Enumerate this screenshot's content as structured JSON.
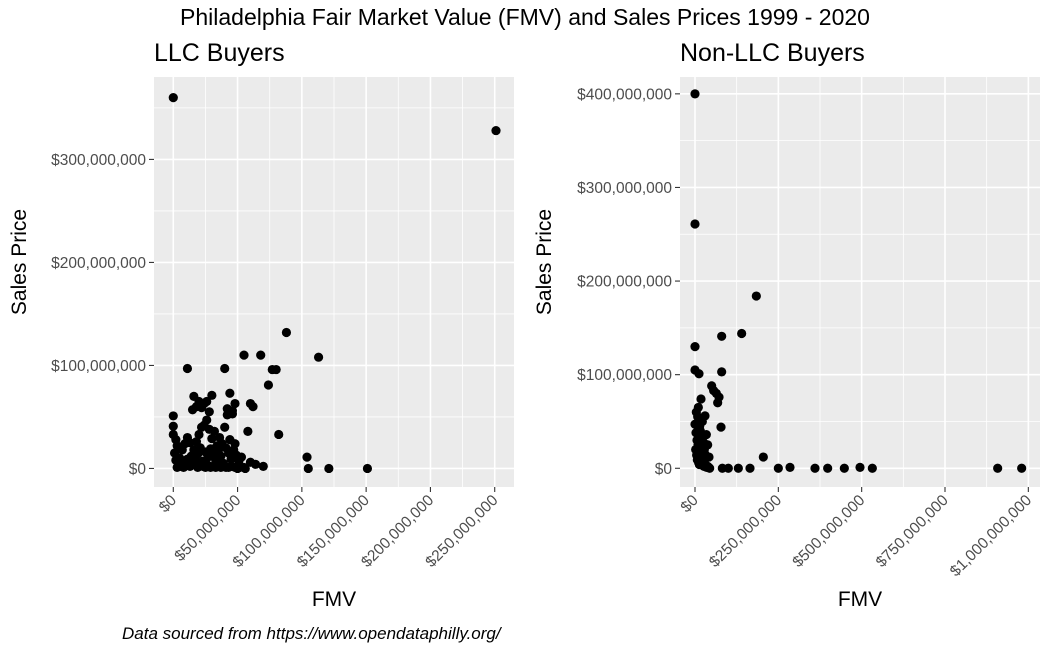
{
  "title": "Philadelphia Fair Market Value (FMV) and Sales Prices 1999 - 2020",
  "caption": "Data sourced from https://www.opendataphilly.org/",
  "chart_data": [
    {
      "type": "scatter",
      "title": "LLC Buyers",
      "xlabel": "FMV",
      "ylabel": "Sales Price",
      "xlim": [
        -15000000,
        265000000
      ],
      "ylim": [
        -18000000,
        380000000
      ],
      "x_ticks": [
        0,
        50000000,
        100000000,
        150000000,
        200000000,
        250000000
      ],
      "x_tick_labels": [
        "$0",
        "$50,000,000",
        "$100,000,000",
        "$150,000,000",
        "$200,000,000",
        "$250,000,000"
      ],
      "y_ticks": [
        0,
        100000000,
        200000000,
        300000000
      ],
      "y_tick_labels": [
        "$0",
        "$100,000,000",
        "$200,000,000",
        "$300,000,000"
      ],
      "grid": true,
      "points": [
        [
          0,
          360000000
        ],
        [
          251000000,
          328000000
        ],
        [
          0,
          51000000
        ],
        [
          0,
          41000000
        ],
        [
          0,
          33000000
        ],
        [
          2000000,
          28000000
        ],
        [
          3000000,
          22000000
        ],
        [
          1000000,
          15000000
        ],
        [
          2000000,
          8000000
        ],
        [
          4000000,
          4000000
        ],
        [
          6000000,
          2000000
        ],
        [
          8000000,
          1000000
        ],
        [
          10000000,
          3000000
        ],
        [
          12000000,
          6000000
        ],
        [
          14000000,
          12000000
        ],
        [
          16000000,
          18000000
        ],
        [
          18000000,
          26000000
        ],
        [
          20000000,
          33000000
        ],
        [
          22000000,
          40000000
        ],
        [
          24000000,
          42000000
        ],
        [
          26000000,
          47000000
        ],
        [
          28000000,
          38000000
        ],
        [
          30000000,
          29000000
        ],
        [
          32000000,
          36000000
        ],
        [
          34000000,
          22000000
        ],
        [
          36000000,
          30000000
        ],
        [
          38000000,
          24000000
        ],
        [
          40000000,
          40000000
        ],
        [
          42000000,
          52000000
        ],
        [
          44000000,
          28000000
        ],
        [
          46000000,
          56000000
        ],
        [
          48000000,
          24000000
        ],
        [
          5000000,
          10000000
        ],
        [
          7000000,
          18000000
        ],
        [
          9000000,
          24000000
        ],
        [
          11000000,
          30000000
        ],
        [
          13000000,
          25000000
        ],
        [
          15000000,
          5000000
        ],
        [
          17000000,
          9000000
        ],
        [
          19000000,
          14000000
        ],
        [
          21000000,
          20000000
        ],
        [
          23000000,
          7000000
        ],
        [
          25000000,
          16000000
        ],
        [
          27000000,
          11000000
        ],
        [
          29000000,
          19000000
        ],
        [
          31000000,
          14000000
        ],
        [
          33000000,
          8000000
        ],
        [
          35000000,
          17000000
        ],
        [
          37000000,
          12000000
        ],
        [
          39000000,
          5000000
        ],
        [
          41000000,
          20000000
        ],
        [
          43000000,
          15000000
        ],
        [
          45000000,
          9000000
        ],
        [
          47000000,
          18000000
        ],
        [
          49000000,
          13000000
        ],
        [
          51000000,
          7000000
        ],
        [
          53000000,
          11000000
        ],
        [
          3000000,
          1000000
        ],
        [
          5000000,
          3000000
        ],
        [
          7000000,
          5000000
        ],
        [
          9000000,
          7000000
        ],
        [
          11000000,
          9000000
        ],
        [
          13000000,
          2000000
        ],
        [
          15000000,
          4000000
        ],
        [
          17000000,
          6000000
        ],
        [
          19000000,
          1000000
        ],
        [
          21000000,
          3000000
        ],
        [
          23000000,
          2000000
        ],
        [
          25000000,
          1000000
        ],
        [
          27000000,
          3000000
        ],
        [
          29000000,
          1000000
        ],
        [
          31000000,
          2000000
        ],
        [
          33000000,
          1000000
        ],
        [
          35000000,
          3000000
        ],
        [
          37000000,
          1000000
        ],
        [
          39000000,
          2000000
        ],
        [
          41000000,
          1000000
        ],
        [
          43000000,
          1000000
        ],
        [
          45000000,
          2000000
        ],
        [
          48000000,
          1000000
        ],
        [
          52000000,
          1000000
        ],
        [
          55000000,
          1000000
        ],
        [
          50000000,
          0
        ],
        [
          56000000,
          0
        ],
        [
          105000000,
          0
        ],
        [
          121000000,
          0
        ],
        [
          151000000,
          0
        ],
        [
          11000000,
          97000000
        ],
        [
          15000000,
          57000000
        ],
        [
          16000000,
          70000000
        ],
        [
          18000000,
          60000000
        ],
        [
          20000000,
          65000000
        ],
        [
          22000000,
          59000000
        ],
        [
          24000000,
          63000000
        ],
        [
          26000000,
          65000000
        ],
        [
          28000000,
          55000000
        ],
        [
          30000000,
          71000000
        ],
        [
          40000000,
          97000000
        ],
        [
          42000000,
          58000000
        ],
        [
          44000000,
          73000000
        ],
        [
          46000000,
          53000000
        ],
        [
          48000000,
          63000000
        ],
        [
          55000000,
          110000000
        ],
        [
          60000000,
          63000000
        ],
        [
          62000000,
          60000000
        ],
        [
          58000000,
          36000000
        ],
        [
          68000000,
          110000000
        ],
        [
          74000000,
          81000000
        ],
        [
          77000000,
          96000000
        ],
        [
          80000000,
          96000000
        ],
        [
          82000000,
          33000000
        ],
        [
          88000000,
          132000000
        ],
        [
          104000000,
          11000000
        ],
        [
          113000000,
          108000000
        ],
        [
          60000000,
          6000000
        ],
        [
          64000000,
          4000000
        ],
        [
          70000000,
          2000000
        ]
      ]
    },
    {
      "type": "scatter",
      "title": "Non-LLC Buyers",
      "xlabel": "FMV",
      "ylabel": "Sales Price",
      "xlim": [
        -45000000,
        1035000000
      ],
      "ylim": [
        -20000000,
        418000000
      ],
      "x_ticks": [
        0,
        250000000,
        500000000,
        750000000,
        1000000000
      ],
      "x_tick_labels": [
        "$0",
        "$250,000,000",
        "$500,000,000",
        "$750,000,000",
        "$1,000,000,000"
      ],
      "y_ticks": [
        0,
        100000000,
        200000000,
        300000000,
        400000000
      ],
      "y_tick_labels": [
        "$0",
        "$100,000,000",
        "$200,000,000",
        "$300,000,000",
        "$400,000,000"
      ],
      "grid": true,
      "points": [
        [
          0,
          400000000
        ],
        [
          0,
          261000000
        ],
        [
          0,
          130000000
        ],
        [
          0,
          105000000
        ],
        [
          12000000,
          101000000
        ],
        [
          0,
          47000000
        ],
        [
          3000000,
          38000000
        ],
        [
          6000000,
          30000000
        ],
        [
          9000000,
          25000000
        ],
        [
          12000000,
          18000000
        ],
        [
          15000000,
          12000000
        ],
        [
          18000000,
          8000000
        ],
        [
          21000000,
          5000000
        ],
        [
          24000000,
          3000000
        ],
        [
          27000000,
          2000000
        ],
        [
          4000000,
          60000000
        ],
        [
          8000000,
          55000000
        ],
        [
          10000000,
          65000000
        ],
        [
          14000000,
          45000000
        ],
        [
          16000000,
          40000000
        ],
        [
          20000000,
          35000000
        ],
        [
          22000000,
          50000000
        ],
        [
          25000000,
          28000000
        ],
        [
          28000000,
          20000000
        ],
        [
          30000000,
          15000000
        ],
        [
          2000000,
          20000000
        ],
        [
          5000000,
          14000000
        ],
        [
          7000000,
          9000000
        ],
        [
          11000000,
          6000000
        ],
        [
          13000000,
          4000000
        ],
        [
          17000000,
          22000000
        ],
        [
          19000000,
          28000000
        ],
        [
          23000000,
          10000000
        ],
        [
          26000000,
          7000000
        ],
        [
          29000000,
          5000000
        ],
        [
          32000000,
          3000000
        ],
        [
          35000000,
          1000000
        ],
        [
          38000000,
          2000000
        ],
        [
          41000000,
          1000000
        ],
        [
          44000000,
          0
        ],
        [
          18000000,
          74000000
        ],
        [
          30000000,
          56000000
        ],
        [
          34000000,
          36000000
        ],
        [
          38000000,
          25000000
        ],
        [
          42000000,
          12000000
        ],
        [
          50000000,
          88000000
        ],
        [
          56000000,
          83000000
        ],
        [
          64000000,
          80000000
        ],
        [
          68000000,
          70000000
        ],
        [
          72000000,
          76000000
        ],
        [
          80000000,
          103000000
        ],
        [
          78000000,
          44000000
        ],
        [
          82000000,
          0
        ],
        [
          80000000,
          141000000
        ],
        [
          100000000,
          0
        ],
        [
          140000000,
          144000000
        ],
        [
          130000000,
          0
        ],
        [
          165000000,
          0
        ],
        [
          184000000,
          184000000
        ],
        [
          205000000,
          12000000
        ],
        [
          250000000,
          0
        ],
        [
          285000000,
          1000000
        ],
        [
          360000000,
          0
        ],
        [
          398000000,
          0
        ],
        [
          448000000,
          0
        ],
        [
          495000000,
          1000000
        ],
        [
          532000000,
          0
        ],
        [
          908000000,
          0
        ],
        [
          980000000,
          0
        ]
      ]
    }
  ]
}
